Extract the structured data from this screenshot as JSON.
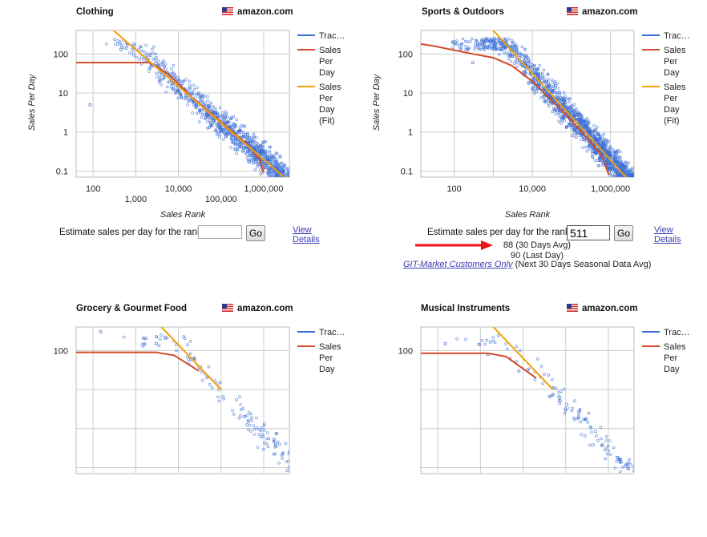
{
  "store_name": "amazon.com",
  "estimate_label": "Estimate sales per day for the rank",
  "go_label": "Go",
  "view_details_label": "View Details",
  "panels": [
    {
      "title": "Clothing",
      "rank_value": "",
      "chart_data": {
        "type": "scatter",
        "xlabel": "Sales Rank",
        "ylabel": "Sales Per Day",
        "xscale": "log",
        "yscale": "log",
        "xlim": [
          40,
          4000000
        ],
        "ylim": [
          0.07,
          400
        ],
        "x_ticks": [
          {
            "v": 100,
            "t": "100"
          },
          {
            "v": 1000,
            "t": "1,000"
          },
          {
            "v": 10000,
            "t": "10,000"
          },
          {
            "v": 100000,
            "t": "100,000"
          },
          {
            "v": 1000000,
            "t": "1,000,000"
          }
        ],
        "y_ticks": [
          {
            "v": 100,
            "t": "100"
          },
          {
            "v": 10,
            "t": "10"
          },
          {
            "v": 1,
            "t": "1"
          },
          {
            "v": 0.1,
            "t": "0.1"
          }
        ],
        "legend": [
          "Trac…",
          "Sales Per Day",
          "Sales Per Day (Fit)"
        ],
        "legend_position": "right",
        "grid": true,
        "series": [
          {
            "name": "Trac…",
            "color": "#3d6fd6",
            "type": "scatter",
            "points": [
              [
                450,
                130
              ],
              [
                85,
                5
              ],
              [
                3000,
                80
              ],
              [
                30000,
                10
              ],
              [
                200000,
                1.5
              ],
              [
                1500000,
                0.2
              ]
            ]
          },
          {
            "name": "Sales Per Day",
            "color": "#d24a2b",
            "type": "line",
            "points": [
              [
                40,
                60
              ],
              [
                2200,
                60
              ],
              [
                6000,
                30
              ],
              [
                20000,
                8
              ],
              [
                100000,
                1.8
              ],
              [
                400000,
                0.5
              ],
              [
                800000,
                0.2
              ],
              [
                1000000,
                0.09
              ]
            ]
          },
          {
            "name": "Sales Per Day (Fit)",
            "color": "#f3a10b",
            "type": "line",
            "points": [
              [
                300,
                400
              ],
              [
                3000000,
                0.07
              ]
            ]
          }
        ]
      }
    },
    {
      "title": "Sports & Outdoors",
      "rank_value": "511",
      "results": [
        "88 (30 Days Avg)",
        "90 (Last Day)"
      ],
      "customers_link": "GIT-Market Customers Only",
      "customers_note": "(Next 30 Days Seasonal Data Avg)",
      "chart_data": {
        "type": "scatter",
        "xlabel": "Sales Rank",
        "ylabel": "Sales Per Day",
        "xscale": "log",
        "yscale": "log",
        "xlim": [
          14,
          4000000
        ],
        "ylim": [
          0.07,
          400
        ],
        "x_ticks": [
          {
            "v": 100,
            "t": "100"
          },
          {
            "v": 10000,
            "t": "10,000"
          },
          {
            "v": 1000000,
            "t": "1,000,000"
          }
        ],
        "y_ticks": [
          {
            "v": 100,
            "t": "100"
          },
          {
            "v": 10,
            "t": "10"
          },
          {
            "v": 1,
            "t": "1"
          },
          {
            "v": 0.1,
            "t": "0.1"
          }
        ],
        "legend": [
          "Trac…",
          "Sales Per Day",
          "Sales Per Day (Fit)"
        ],
        "legend_position": "right",
        "grid": true,
        "series": [
          {
            "name": "Trac…",
            "color": "#3d6fd6",
            "type": "scatter",
            "points": [
              [
                2000,
                150
              ],
              [
                300,
                60
              ],
              [
                20000,
                8
              ],
              [
                200000,
                1
              ],
              [
                1500000,
                0.15
              ]
            ]
          },
          {
            "name": "Sales Per Day",
            "color": "#d24a2b",
            "type": "line",
            "points": [
              [
                14,
                180
              ],
              [
                30,
                160
              ],
              [
                300,
                100
              ],
              [
                1000,
                80
              ],
              [
                3000,
                50
              ],
              [
                10000,
                20
              ],
              [
                50000,
                4
              ],
              [
                200000,
                0.9
              ],
              [
                600000,
                0.25
              ],
              [
                900000,
                0.08
              ]
            ]
          },
          {
            "name": "Sales Per Day (Fit)",
            "color": "#f3a10b",
            "type": "line",
            "points": [
              [
                1000,
                400
              ],
              [
                2500000,
                0.07
              ]
            ]
          }
        ]
      }
    },
    {
      "title": "Grocery & Gourmet Food",
      "rank_value": "",
      "chart_data": {
        "type": "scatter",
        "ylabel": "",
        "xscale": "log",
        "yscale": "log",
        "xlim": [
          40,
          4000000
        ],
        "ylim": [
          0.07,
          400
        ],
        "y_ticks": [
          {
            "v": 100,
            "t": "100"
          }
        ],
        "legend": [
          "Trac…",
          "Sales Per Day"
        ],
        "legend_position": "right",
        "grid": true,
        "series": [
          {
            "name": "Trac…",
            "color": "#3d6fd6",
            "type": "scatter",
            "points": [
              [
                150,
                300
              ],
              [
                3000,
                150
              ],
              [
                20000,
                60
              ]
            ]
          },
          {
            "name": "Sales Per Day",
            "color": "#d24a2b",
            "type": "line",
            "points": [
              [
                40,
                90
              ],
              [
                3000,
                90
              ],
              [
                8000,
                75
              ],
              [
                30000,
                30
              ]
            ]
          },
          {
            "name": "Sales Per Day (Fit)",
            "color": "#f3a10b",
            "type": "line",
            "points": [
              [
                4000,
                400
              ],
              [
                100000,
                10
              ]
            ]
          }
        ]
      }
    },
    {
      "title": "Musical Instruments",
      "rank_value": "",
      "chart_data": {
        "type": "scatter",
        "ylabel": "",
        "xscale": "log",
        "yscale": "log",
        "xlim": [
          40,
          4000000
        ],
        "ylim": [
          0.07,
          400
        ],
        "y_ticks": [
          {
            "v": 100,
            "t": "100"
          }
        ],
        "legend": [
          "Trac…",
          "Sales Per Day"
        ],
        "legend_position": "right",
        "grid": true,
        "series": [
          {
            "name": "Trac…",
            "color": "#3d6fd6",
            "type": "scatter",
            "points": [
              [
                150,
                150
              ],
              [
                1500,
                80
              ],
              [
                8000,
                30
              ]
            ]
          },
          {
            "name": "Sales Per Day",
            "color": "#d24a2b",
            "type": "line",
            "points": [
              [
                40,
                85
              ],
              [
                1500,
                85
              ],
              [
                4000,
                70
              ],
              [
                20000,
                20
              ]
            ]
          },
          {
            "name": "Sales Per Day (Fit)",
            "color": "#f3a10b",
            "type": "line",
            "points": [
              [
                2000,
                400
              ],
              [
                50000,
                10
              ]
            ]
          }
        ]
      }
    }
  ]
}
